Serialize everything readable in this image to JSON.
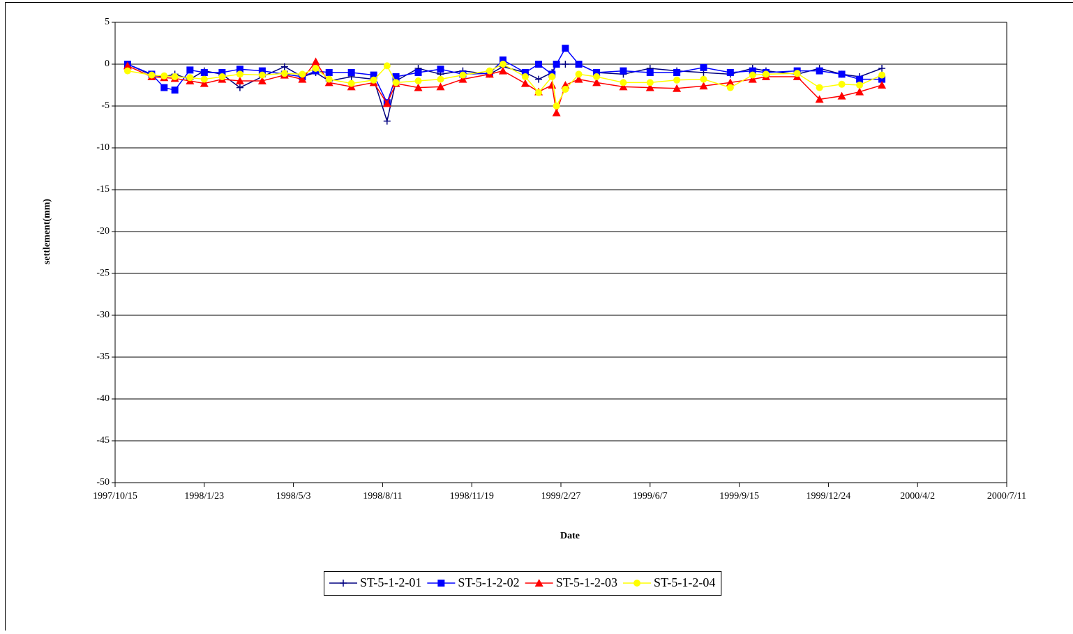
{
  "chart_data": {
    "type": "line",
    "xlabel": "Date",
    "ylabel": "settlement(mm)",
    "xlim": [
      "1997/10/15",
      "2000/7/11"
    ],
    "xticks": [
      "1997/10/15",
      "1998/1/23",
      "1998/5/3",
      "1998/8/11",
      "1998/11/19",
      "1999/2/27",
      "1999/6/7",
      "1999/9/15",
      "1999/12/24",
      "2000/4/2",
      "2000/7/11"
    ],
    "ylim": [
      -50,
      5
    ],
    "yticks": [
      -50,
      -45,
      -40,
      -35,
      -30,
      -25,
      -20,
      -15,
      -10,
      -5,
      0,
      5
    ],
    "grid": true,
    "legend": "bottom",
    "x": [
      "1997/10/29",
      "1997/11/25",
      "1997/12/9",
      "1997/12/21",
      "1998/1/7",
      "1998/1/23",
      "1998/2/12",
      "1998/3/4",
      "1998/3/29",
      "1998/4/23",
      "1998/5/13",
      "1998/5/28",
      "1998/6/12",
      "1998/7/7",
      "1998/8/1",
      "1998/8/16",
      "1998/8/26",
      "1998/9/20",
      "1998/10/15",
      "1998/11/9",
      "1998/12/9",
      "1998/12/24",
      "1999/1/18",
      "1999/2/2",
      "1999/2/17",
      "1999/2/22",
      "1999/3/4",
      "1999/3/19",
      "1999/4/8",
      "1999/5/8",
      "1999/6/7",
      "1999/7/7",
      "1999/8/6",
      "1999/9/5",
      "1999/9/30",
      "1999/10/15",
      "1999/11/19",
      "1999/12/14",
      "2000/1/8",
      "2000/1/28",
      "2000/2/22"
    ],
    "series": [
      {
        "name": "ST-5-1-2-01",
        "color": "#000080",
        "marker": "plus",
        "values": [
          0,
          -1.3,
          -1.5,
          -1.2,
          -1.8,
          -0.8,
          -1.2,
          -2.8,
          -1.5,
          -0.3,
          -1.5,
          -1,
          -2,
          -1.5,
          -1.8,
          -6.8,
          -2,
          -0.5,
          -1.2,
          -0.8,
          -1.2,
          -0.3,
          -1,
          -1.8,
          -1,
          0,
          0,
          0,
          -1,
          -1.2,
          -0.5,
          -0.8,
          -1,
          -1.2,
          -0.5,
          -0.8,
          -1.2,
          -0.5,
          -1.2,
          -1.5,
          -0.5
        ]
      },
      {
        "name": "ST-5-1-2-02",
        "color": "#0000ff",
        "marker": "square",
        "values": [
          0,
          -1.2,
          -2.8,
          -3.1,
          -0.7,
          -1,
          -1,
          -0.6,
          -0.8,
          -1.2,
          -1.5,
          -0.8,
          -1,
          -1,
          -1.3,
          -4.6,
          -1.5,
          -1,
          -0.6,
          -1.2,
          -1.1,
          0.5,
          -1,
          0,
          -1.2,
          0,
          1.9,
          0,
          -1,
          -0.8,
          -1,
          -1,
          -0.4,
          -1,
          -0.8,
          -1,
          -0.8,
          -0.8,
          -1.2,
          -1.8,
          -1.8
        ]
      },
      {
        "name": "ST-5-1-2-03",
        "color": "#ff0000",
        "marker": "triangle",
        "values": [
          -0.2,
          -1.5,
          -1.6,
          -1.7,
          -2,
          -2.3,
          -1.8,
          -2,
          -2,
          -1.3,
          -1.8,
          0.3,
          -2.2,
          -2.7,
          -2.2,
          -4.7,
          -2.3,
          -2.8,
          -2.7,
          -1.8,
          -1.2,
          -0.8,
          -2.3,
          -3.3,
          -2.5,
          -5.8,
          -2.5,
          -1.8,
          -2.2,
          -2.7,
          -2.8,
          -2.9,
          -2.6,
          -2.2,
          -1.8,
          -1.5,
          -1.5,
          -4.2,
          -3.8,
          -3.3,
          -2.5
        ]
      },
      {
        "name": "ST-5-1-2-04",
        "color": "#ffff00",
        "marker": "circle",
        "values": [
          -0.8,
          -1.3,
          -1.4,
          -1.5,
          -1.6,
          -1.8,
          -1.5,
          -1.2,
          -1.3,
          -1.1,
          -1.2,
          -0.5,
          -1.8,
          -2.3,
          -1.9,
          -0.2,
          -2.2,
          -2,
          -1.8,
          -1.3,
          -0.8,
          0,
          -1.5,
          -3.4,
          -1.5,
          -5,
          -3,
          -1.2,
          -1.5,
          -2.2,
          -2.2,
          -1.9,
          -1.8,
          -2.8,
          -1.3,
          -1.2,
          -1.1,
          -2.8,
          -2.4,
          -2.5,
          -1.3
        ]
      }
    ]
  }
}
